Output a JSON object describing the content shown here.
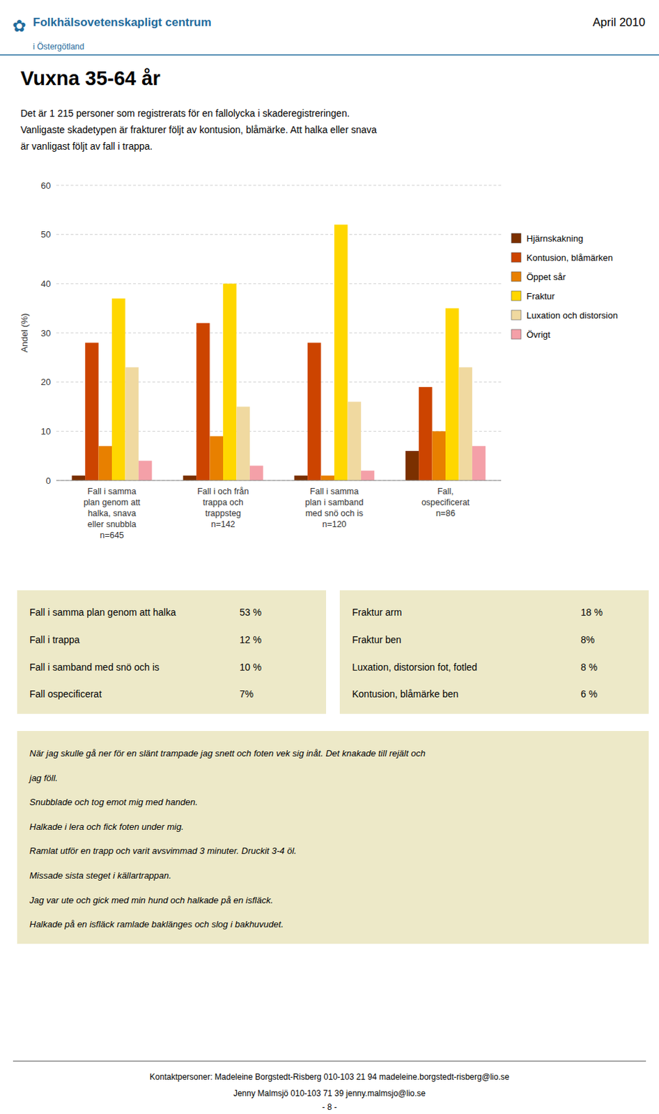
{
  "chart_data": {
    "type": "bar",
    "ylabel": "Andel (%)",
    "ylim": [
      0,
      60
    ],
    "yticks": [
      0,
      10,
      20,
      30,
      40,
      50,
      60
    ],
    "grid": true,
    "legend": "right",
    "categories": [
      "Fall i samma\nplan genom att\nhalka, snava\neller snubbla\nn=645",
      "Fall i och från\ntrappa och\ntrappsteg\nn=142",
      "Fall i samma\nplan i samband\nmed snö och is\nn=120",
      "Fall,\nospecificerat\nn=86"
    ],
    "series": [
      {
        "name": "Hjärnskakning",
        "color": "#7B3000",
        "values": [
          1,
          1,
          1,
          6
        ]
      },
      {
        "name": "Kontusion, blåmärken",
        "color": "#CC4400",
        "values": [
          28,
          32,
          28,
          19
        ]
      },
      {
        "name": "Öppet sår",
        "color": "#E88000",
        "values": [
          7,
          9,
          1,
          10
        ]
      },
      {
        "name": "Fraktur",
        "color": "#FFD700",
        "values": [
          37,
          40,
          52,
          35
        ]
      },
      {
        "name": "Luxation och distorsion",
        "color": "#F0D9A0",
        "values": [
          23,
          15,
          16,
          23
        ]
      },
      {
        "name": "Övrigt",
        "color": "#F4A0A8",
        "values": [
          4,
          3,
          2,
          7
        ]
      }
    ]
  },
  "page": {
    "logo_mark": "✿",
    "org_name": "Folkhälsovetenskapligt centrum",
    "org_sub": "i Östergötland",
    "header_color": "#1F6B9C",
    "date": "April 2010",
    "title": "Vuxna 35-64 år",
    "intro_text": "Det är 1 215 personer som registrerats för en fallolycka i skaderegistreringen.\nVanligaste skadetypen är frakturer följt av kontusion, blåmärke. Att halka eller snava\när vanligast följt av fall i trappa.",
    "stats_bg_color": "#EDE9C8",
    "stats_box": {
      "left": [
        [
          "Fall i samma plan genom att halka",
          "53 %"
        ],
        [
          "Fall i trappa",
          "12 %"
        ],
        [
          "Fall i samband med snö och is",
          "10 %"
        ],
        [
          "Fall ospecificerat",
          "7%"
        ]
      ],
      "right": [
        [
          "Fraktur arm",
          "18 %"
        ],
        [
          "Fraktur ben",
          "8%"
        ],
        [
          "Luxation, distorsion fot, fotled",
          "8 %"
        ],
        [
          "Kontusion, blåmärke ben",
          "6 %"
        ]
      ]
    },
    "quote_lines": [
      "När jag skulle gå ner för en slänt trampade jag snett och foten vek sig inåt. Det knakade till rejält och",
      "jag föll.",
      "Snubblade och tog emot mig med handen.",
      "Halkade i lera och fick foten under mig.",
      "Ramlat utför en trapp och varit avsvimmad 3 minuter. Druckit 3-4 öl.",
      "Missade sista steget i källartrappan.",
      "Jag var ute och gick med min hund och halkade på en isfläck.",
      "Halkade på en isfläck ramlade baklänges och slog i bakhuvudet."
    ],
    "footer_lines": [
      "Kontaktpersoner: Madeleine Borgstedt-Risberg 010-103 21 94  madeleine.borgstedt-risberg@lio.se",
      "Jenny Malmsjö 010-103 71 39  jenny.malmsjo@lio.se"
    ],
    "page_number": "- 8 -"
  }
}
